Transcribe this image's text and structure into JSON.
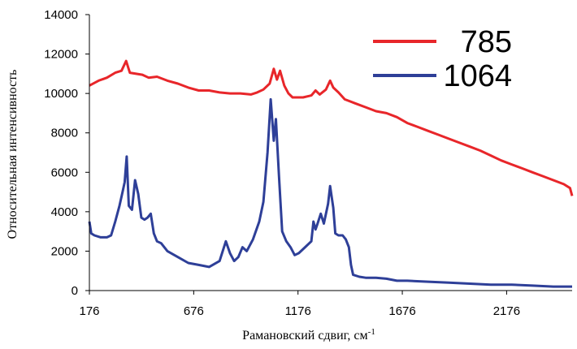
{
  "chart_data": {
    "type": "line",
    "xlabel": "Рамановский сдвиг, см",
    "xlabel_sup": "-1",
    "ylabel": "Относительная интенсивность",
    "xlim": [
      176,
      2490
    ],
    "ylim": [
      0,
      14000
    ],
    "x_ticks": [
      "176",
      "676",
      "1176",
      "1676",
      "2176"
    ],
    "y_ticks": [
      "0",
      "2000",
      "4000",
      "6000",
      "8000",
      "10000",
      "12000",
      "14000"
    ],
    "legend_position": "top-right",
    "series": [
      {
        "name": "785",
        "color": "#e8262a",
        "points": [
          [
            176,
            10400
          ],
          [
            220,
            10650
          ],
          [
            260,
            10800
          ],
          [
            300,
            11050
          ],
          [
            330,
            11150
          ],
          [
            352,
            11650
          ],
          [
            370,
            11050
          ],
          [
            400,
            11000
          ],
          [
            430,
            10950
          ],
          [
            460,
            10800
          ],
          [
            500,
            10850
          ],
          [
            550,
            10650
          ],
          [
            600,
            10500
          ],
          [
            650,
            10300
          ],
          [
            700,
            10150
          ],
          [
            750,
            10150
          ],
          [
            800,
            10050
          ],
          [
            850,
            10000
          ],
          [
            900,
            10000
          ],
          [
            950,
            9950
          ],
          [
            980,
            10050
          ],
          [
            1010,
            10200
          ],
          [
            1040,
            10500
          ],
          [
            1060,
            11250
          ],
          [
            1075,
            10700
          ],
          [
            1090,
            11150
          ],
          [
            1110,
            10400
          ],
          [
            1130,
            10000
          ],
          [
            1150,
            9800
          ],
          [
            1200,
            9800
          ],
          [
            1240,
            9900
          ],
          [
            1260,
            10150
          ],
          [
            1280,
            9950
          ],
          [
            1310,
            10200
          ],
          [
            1330,
            10650
          ],
          [
            1345,
            10300
          ],
          [
            1370,
            10050
          ],
          [
            1400,
            9700
          ],
          [
            1450,
            9500
          ],
          [
            1500,
            9300
          ],
          [
            1550,
            9100
          ],
          [
            1600,
            9000
          ],
          [
            1650,
            8800
          ],
          [
            1700,
            8500
          ],
          [
            1750,
            8300
          ],
          [
            1800,
            8100
          ],
          [
            1850,
            7900
          ],
          [
            1900,
            7700
          ],
          [
            1950,
            7500
          ],
          [
            2000,
            7300
          ],
          [
            2050,
            7100
          ],
          [
            2100,
            6850
          ],
          [
            2150,
            6600
          ],
          [
            2200,
            6400
          ],
          [
            2250,
            6200
          ],
          [
            2300,
            6000
          ],
          [
            2350,
            5800
          ],
          [
            2400,
            5600
          ],
          [
            2450,
            5400
          ],
          [
            2480,
            5200
          ],
          [
            2490,
            4800
          ]
        ]
      },
      {
        "name": "1064",
        "color": "#2e3f98",
        "points": [
          [
            176,
            3500
          ],
          [
            185,
            2900
          ],
          [
            200,
            2800
          ],
          [
            230,
            2700
          ],
          [
            260,
            2700
          ],
          [
            280,
            2800
          ],
          [
            300,
            3500
          ],
          [
            320,
            4300
          ],
          [
            335,
            5000
          ],
          [
            345,
            5500
          ],
          [
            355,
            6800
          ],
          [
            365,
            4300
          ],
          [
            380,
            4100
          ],
          [
            395,
            5600
          ],
          [
            410,
            4900
          ],
          [
            425,
            3700
          ],
          [
            440,
            3600
          ],
          [
            455,
            3700
          ],
          [
            470,
            3900
          ],
          [
            485,
            2900
          ],
          [
            500,
            2500
          ],
          [
            520,
            2400
          ],
          [
            550,
            2000
          ],
          [
            600,
            1700
          ],
          [
            650,
            1400
          ],
          [
            700,
            1300
          ],
          [
            750,
            1200
          ],
          [
            800,
            1500
          ],
          [
            830,
            2500
          ],
          [
            850,
            1900
          ],
          [
            870,
            1500
          ],
          [
            890,
            1700
          ],
          [
            910,
            2200
          ],
          [
            930,
            2000
          ],
          [
            960,
            2600
          ],
          [
            990,
            3500
          ],
          [
            1010,
            4500
          ],
          [
            1030,
            7000
          ],
          [
            1045,
            9700
          ],
          [
            1060,
            7600
          ],
          [
            1070,
            8700
          ],
          [
            1085,
            5800
          ],
          [
            1100,
            3000
          ],
          [
            1120,
            2500
          ],
          [
            1140,
            2200
          ],
          [
            1160,
            1800
          ],
          [
            1180,
            1900
          ],
          [
            1210,
            2200
          ],
          [
            1240,
            2500
          ],
          [
            1250,
            3500
          ],
          [
            1260,
            3100
          ],
          [
            1270,
            3400
          ],
          [
            1285,
            3900
          ],
          [
            1300,
            3400
          ],
          [
            1320,
            4400
          ],
          [
            1330,
            5300
          ],
          [
            1345,
            4200
          ],
          [
            1355,
            2900
          ],
          [
            1370,
            2800
          ],
          [
            1390,
            2800
          ],
          [
            1405,
            2600
          ],
          [
            1420,
            2200
          ],
          [
            1430,
            1300
          ],
          [
            1440,
            800
          ],
          [
            1470,
            700
          ],
          [
            1500,
            650
          ],
          [
            1550,
            650
          ],
          [
            1600,
            600
          ],
          [
            1650,
            500
          ],
          [
            1700,
            500
          ],
          [
            1800,
            450
          ],
          [
            1900,
            400
          ],
          [
            2000,
            350
          ],
          [
            2100,
            300
          ],
          [
            2200,
            300
          ],
          [
            2300,
            250
          ],
          [
            2400,
            200
          ],
          [
            2490,
            200
          ]
        ]
      }
    ]
  }
}
